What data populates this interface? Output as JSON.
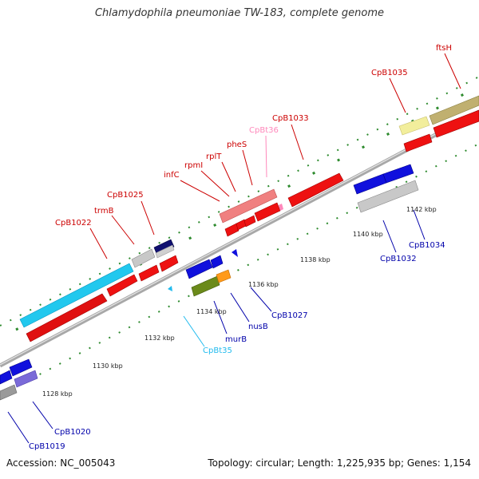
{
  "header": {
    "title": "Chlamydophila pneumoniae TW-183, complete genome"
  },
  "footer": {
    "accession": "Accession: NC_005043",
    "summary": "Topology: circular; Length: 1,225,935 bp; Genes: 1,154"
  },
  "colors": {
    "backbone": "#8a8a8a",
    "tick": "#2e8b2e",
    "forward_label": "#cc0000",
    "reverse_label": "#0000aa",
    "trna_forward_label": "#ff88bb",
    "trna_reverse_label": "#22bbee"
  },
  "ticks": [
    "1128 kbp",
    "1130 kbp",
    "1132 kbp",
    "1134 kbp",
    "1136 kbp",
    "1138 kbp",
    "1140 kbp",
    "1142 kbp"
  ],
  "forward_labels": [
    "CpB1022",
    "trmB",
    "CpB1025",
    "infC",
    "rpmI",
    "rplT",
    "pheS",
    "CpBt36",
    "CpB1033",
    "CpB1035",
    "ftsH"
  ],
  "reverse_labels": [
    "CpB1019",
    "CpB1020",
    "CpBt35",
    "murB",
    "nusB",
    "CpB1027",
    "CpB1032",
    "CpB1034"
  ]
}
